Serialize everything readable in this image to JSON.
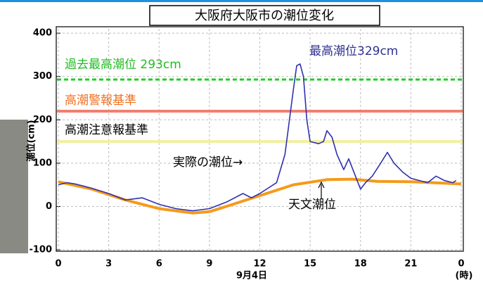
{
  "chart_data": {
    "type": "line",
    "title": "大阪府大阪市の潮位変化",
    "x_label": "9月4日",
    "x_unit": "(時)",
    "y_label": "潮位(cm)",
    "xlim": [
      0,
      24
    ],
    "xticks": [
      0,
      3,
      6,
      9,
      12,
      15,
      18,
      21,
      {
        "value": 24,
        "label": "0"
      }
    ],
    "ylim": [
      -100,
      410
    ],
    "yticks": [
      -100,
      0,
      100,
      200,
      300,
      400
    ],
    "grid": true,
    "reference_lines": [
      {
        "value": 293,
        "color": "#22cc22",
        "style": "dashed"
      },
      {
        "value": 220,
        "color": "#f08070",
        "style": "solid"
      },
      {
        "value": 150,
        "color": "#f0f0a0",
        "style": "solid"
      }
    ],
    "annotations": [
      "過去最高潮位 293cm",
      "高潮警報基準",
      "高潮注意報基準",
      "最高潮位329cm",
      "実際の潮位→",
      "天文潮位"
    ],
    "series": [
      {
        "name": "実際の潮位",
        "color": "#3030b0",
        "x": [
          0,
          0.5,
          1,
          2,
          3,
          4,
          5,
          6,
          7,
          8,
          9,
          10,
          11,
          11.5,
          12,
          13,
          13.5,
          14,
          14.2,
          14.4,
          14.6,
          14.8,
          15,
          15.5,
          15.8,
          16,
          16.3,
          16.6,
          17,
          17.3,
          17.6,
          18,
          18.3,
          18.7,
          19.2,
          19.6,
          20,
          20.5,
          21,
          21.5,
          22,
          22.5,
          23,
          23.5,
          23.7
        ],
        "values": [
          50,
          55,
          52,
          42,
          30,
          15,
          20,
          5,
          -5,
          -10,
          -5,
          10,
          30,
          20,
          30,
          55,
          120,
          270,
          325,
          329,
          300,
          200,
          150,
          145,
          150,
          175,
          160,
          120,
          85,
          110,
          80,
          40,
          55,
          70,
          100,
          125,
          100,
          80,
          65,
          60,
          55,
          70,
          60,
          55,
          60
        ]
      },
      {
        "name": "天文潮位",
        "color": "#f59a1a",
        "x": [
          0,
          2,
          4,
          6,
          8,
          9,
          10,
          12,
          14,
          16,
          17.5,
          19,
          21,
          24
        ],
        "values": [
          57,
          40,
          15,
          -5,
          -15,
          -12,
          0,
          25,
          50,
          62,
          63,
          58,
          57,
          52
        ]
      }
    ]
  }
}
